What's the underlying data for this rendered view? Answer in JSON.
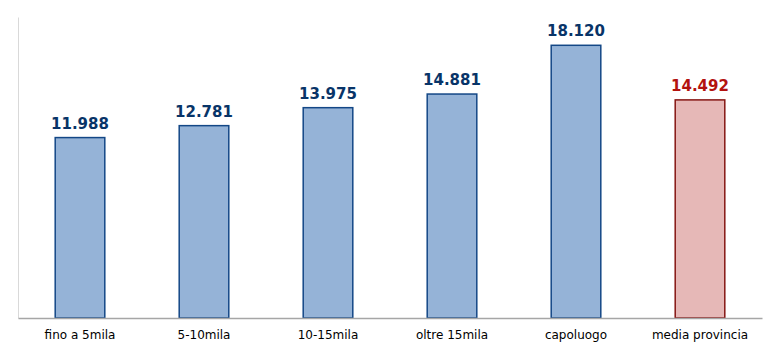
{
  "chart_data": {
    "type": "bar",
    "categories": [
      "fino a 5mila",
      "5-10mila",
      "10-15mila",
      "oltre 15mila",
      "capoluogo",
      "media provincia"
    ],
    "values": [
      11988,
      12781,
      13975,
      14881,
      18120,
      14492
    ],
    "value_labels": [
      "11.988",
      "12.781",
      "13.975",
      "14.881",
      "18.120",
      "14.492"
    ],
    "colors": [
      "#95b3d7",
      "#95b3d7",
      "#95b3d7",
      "#95b3d7",
      "#95b3d7",
      "#e6b8b7"
    ],
    "ylim": [
      0,
      20000
    ],
    "data_labels": true,
    "tick_labels": "x",
    "grid": false
  }
}
